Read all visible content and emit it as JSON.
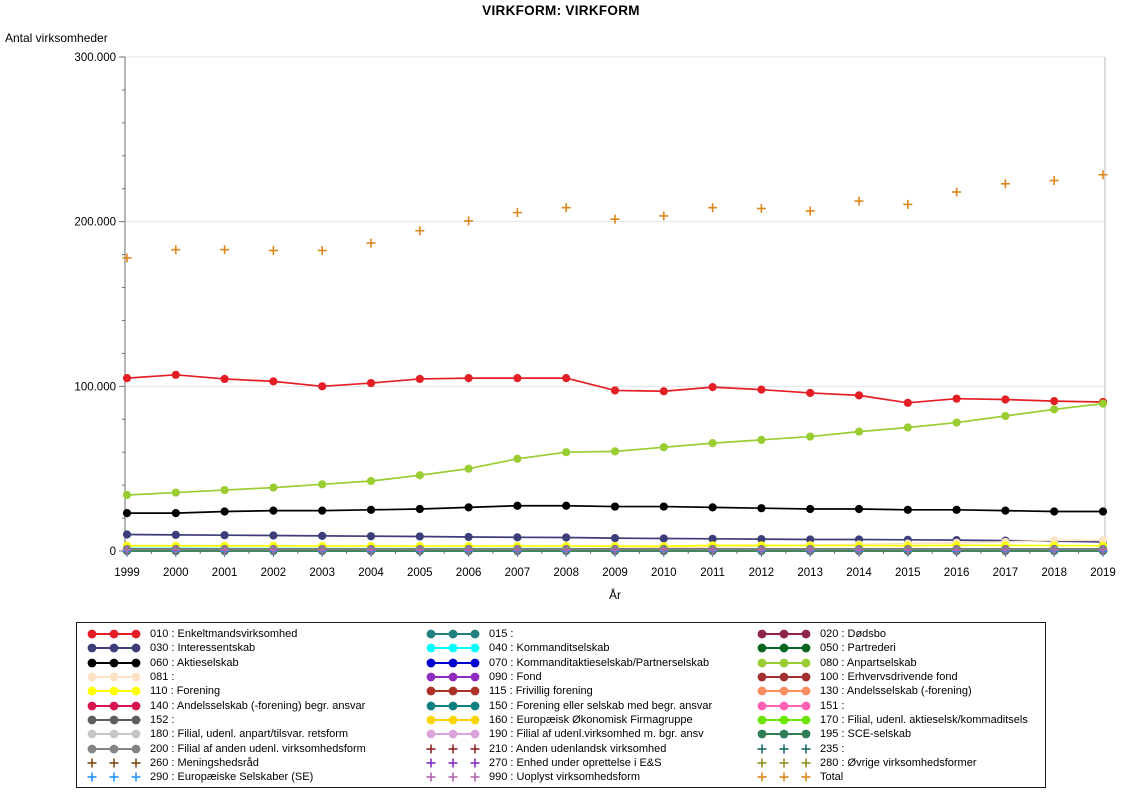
{
  "chart_data": {
    "type": "line",
    "title": "VIRKFORM: VIRKFORM",
    "xlabel": "År",
    "ylabel": "Antal virksomheder",
    "x": [
      1999,
      2000,
      2001,
      2002,
      2003,
      2004,
      2005,
      2006,
      2007,
      2008,
      2009,
      2010,
      2011,
      2012,
      2013,
      2014,
      2015,
      2016,
      2017,
      2018,
      2019
    ],
    "ylim": [
      0,
      300000
    ],
    "yticks": [
      0,
      100000,
      200000,
      300000
    ],
    "ytick_labels": [
      "0",
      "100.000",
      "200.000",
      "300.000"
    ],
    "y_minor_step": 20000,
    "grid": true,
    "legend_position": "bottom",
    "series": [
      {
        "code": "010",
        "legend_label": "010 : Enkeltmandsvirksomhed",
        "color": "#e41e25",
        "marker": "circle",
        "values": [
          105000,
          107000,
          104500,
          103000,
          100000,
          102000,
          104500,
          105000,
          105000,
          105000,
          97500,
          97000,
          99500,
          98000,
          96000,
          94500,
          90000,
          92500,
          92000,
          91000,
          90500
        ]
      },
      {
        "code": "015",
        "legend_label": "015 :",
        "color": "#238080",
        "marker": "circle",
        "values": [
          200,
          200,
          200,
          200,
          200,
          200,
          200,
          200,
          200,
          200,
          200,
          200,
          200,
          200,
          200,
          200,
          200,
          200,
          200,
          200,
          200
        ]
      },
      {
        "code": "020",
        "legend_label": "020 : Dødsbo",
        "color": "#8f2449",
        "marker": "circle",
        "values": [
          500,
          500,
          500,
          500,
          500,
          500,
          500,
          500,
          500,
          500,
          500,
          500,
          500,
          500,
          500,
          500,
          500,
          500,
          500,
          500,
          500
        ]
      },
      {
        "code": "030",
        "legend_label": "030 : Interessentskab",
        "color": "#3d3d7a",
        "marker": "circle",
        "values": [
          10000,
          9800,
          9600,
          9400,
          9200,
          9000,
          8800,
          8500,
          8300,
          8200,
          7800,
          7600,
          7400,
          7200,
          7000,
          7000,
          6800,
          6600,
          6300,
          6000,
          5500
        ]
      },
      {
        "code": "040",
        "legend_label": "040 : Kommanditselskab",
        "color": "#00ffff",
        "marker": "circle",
        "values": [
          1500,
          1500,
          1450,
          1450,
          1400,
          1400,
          1400,
          1350,
          1350,
          1350,
          1300,
          1300,
          1300,
          1300,
          1300,
          1300,
          1300,
          1300,
          1300,
          1300,
          1300
        ]
      },
      {
        "code": "050",
        "legend_label": "050 : Partrederi",
        "color": "#0b6623",
        "marker": "circle",
        "values": [
          300,
          300,
          300,
          300,
          300,
          300,
          300,
          300,
          300,
          300,
          300,
          300,
          300,
          300,
          300,
          300,
          300,
          300,
          300,
          300,
          300
        ]
      },
      {
        "code": "060",
        "legend_label": "060 : Aktieselskab",
        "color": "#000000",
        "marker": "circle",
        "values": [
          23000,
          23000,
          24000,
          24500,
          24500,
          25000,
          25500,
          26500,
          27500,
          27500,
          27000,
          27000,
          26500,
          26000,
          25500,
          25500,
          25000,
          25000,
          24500,
          24000,
          24000
        ]
      },
      {
        "code": "070",
        "legend_label": "070 : Kommanditaktieselskab/Partnerselskab",
        "color": "#0000d0",
        "marker": "circle",
        "values": [
          600,
          600,
          600,
          600,
          600,
          600,
          600,
          600,
          600,
          600,
          600,
          600,
          600,
          600,
          600,
          600,
          600,
          600,
          600,
          600,
          600
        ]
      },
      {
        "code": "080",
        "legend_label": "080 : Anpartselskab",
        "color": "#9acd32",
        "marker": "circle",
        "values": [
          34000,
          35500,
          37000,
          38500,
          40500,
          42500,
          46000,
          50000,
          56000,
          60000,
          60500,
          63000,
          65500,
          67500,
          69500,
          72500,
          75000,
          78000,
          82000,
          86000,
          89500
        ]
      },
      {
        "code": "081",
        "legend_label": "081 :",
        "color": "#fce2c4",
        "marker": "circle",
        "values": [
          300,
          350,
          400,
          450,
          500,
          600,
          700,
          800,
          1000,
          1200,
          1500,
          2000,
          2500,
          3000,
          3500,
          4000,
          4500,
          5000,
          5500,
          6500,
          6500
        ]
      },
      {
        "code": "090",
        "legend_label": "090 : Fond",
        "color": "#8f2bbf",
        "marker": "circle",
        "values": [
          1000,
          1000,
          1000,
          1000,
          1000,
          1000,
          1000,
          1000,
          1000,
          1000,
          1000,
          1000,
          1000,
          1000,
          1000,
          1000,
          1000,
          1000,
          1000,
          1000,
          1000
        ]
      },
      {
        "code": "100",
        "legend_label": "100 : Erhvervsdrivende fond",
        "color": "#a03030",
        "marker": "circle",
        "values": [
          1300,
          1300,
          1300,
          1300,
          1300,
          1300,
          1300,
          1300,
          1300,
          1300,
          1300,
          1300,
          1300,
          1300,
          1300,
          1300,
          1300,
          1300,
          1300,
          1300,
          1300
        ]
      },
      {
        "code": "110",
        "legend_label": "110 : Forening",
        "color": "#ffff00",
        "marker": "circle",
        "values": [
          3200,
          3200,
          3100,
          3100,
          3000,
          3000,
          3000,
          3000,
          3000,
          3000,
          2900,
          2900,
          3400,
          3400,
          3300,
          3300,
          3200,
          3500,
          3400,
          3300,
          3200
        ]
      },
      {
        "code": "115",
        "legend_label": "115 : Frivillig forening",
        "color": "#ae3129",
        "marker": "circle",
        "values": [
          100,
          100,
          100,
          100,
          100,
          100,
          100,
          100,
          100,
          100,
          100,
          100,
          100,
          100,
          100,
          100,
          100,
          100,
          100,
          100,
          100
        ]
      },
      {
        "code": "130",
        "legend_label": "130 : Andelsselskab (-forening)",
        "color": "#fb8e61",
        "marker": "circle",
        "values": [
          500,
          500,
          500,
          500,
          500,
          500,
          500,
          500,
          500,
          500,
          500,
          500,
          500,
          500,
          500,
          500,
          500,
          500,
          500,
          500,
          500
        ]
      },
      {
        "code": "140",
        "legend_label": "140 : Andelsselskab (-forening) begr. ansvar",
        "color": "#d6164e",
        "marker": "circle",
        "values": [
          800,
          800,
          800,
          800,
          800,
          800,
          800,
          800,
          800,
          800,
          800,
          800,
          800,
          800,
          800,
          800,
          800,
          800,
          800,
          800,
          800
        ]
      },
      {
        "code": "150",
        "legend_label": "150 : Forening eller selskab med begr. ansvar",
        "color": "#108080",
        "marker": "circle",
        "values": [
          1200,
          1200,
          1200,
          1200,
          1200,
          1200,
          1200,
          1200,
          1200,
          1200,
          1200,
          1200,
          1200,
          1200,
          1200,
          1200,
          1200,
          1200,
          1200,
          1200,
          1200
        ]
      },
      {
        "code": "151",
        "legend_label": "151 :",
        "color": "#fd61b6",
        "marker": "circle",
        "values": [
          100,
          100,
          100,
          100,
          100,
          100,
          100,
          100,
          100,
          100,
          100,
          100,
          100,
          100,
          100,
          100,
          100,
          100,
          100,
          100,
          100
        ]
      },
      {
        "code": "152",
        "legend_label": "152 :",
        "color": "#5e5e5e",
        "marker": "circle",
        "values": [
          400,
          400,
          400,
          400,
          400,
          400,
          400,
          400,
          400,
          400,
          400,
          400,
          400,
          400,
          400,
          400,
          400,
          400,
          400,
          400,
          400
        ]
      },
      {
        "code": "160",
        "legend_label": "160 : Europæisk Økonomisk Firmagruppe",
        "color": "#fcd305",
        "marker": "circle",
        "values": [
          50,
          50,
          50,
          50,
          50,
          50,
          50,
          50,
          50,
          50,
          50,
          50,
          50,
          50,
          50,
          50,
          50,
          50,
          50,
          50,
          50
        ]
      },
      {
        "code": "170",
        "legend_label": "170 : Filial, udenl. aktieselsk/kommaditsels",
        "color": "#6ce300",
        "marker": "circle",
        "values": [
          700,
          700,
          700,
          700,
          700,
          700,
          700,
          700,
          700,
          700,
          700,
          700,
          700,
          700,
          700,
          700,
          700,
          700,
          700,
          700,
          700
        ]
      },
      {
        "code": "180",
        "legend_label": "180 : Filial, udenl. anpart/tilsvar. retsform",
        "color": "#c6c6c6",
        "marker": "circle",
        "values": [
          900,
          900,
          900,
          900,
          900,
          900,
          900,
          900,
          900,
          900,
          900,
          900,
          900,
          900,
          900,
          900,
          900,
          900,
          900,
          900,
          900
        ]
      },
      {
        "code": "190",
        "legend_label": "190 : Filial af udenl.virksomhed m. bgr. ansv",
        "color": "#daa5da",
        "marker": "circle",
        "values": [
          150,
          150,
          150,
          150,
          150,
          150,
          150,
          150,
          150,
          150,
          150,
          150,
          150,
          150,
          150,
          150,
          150,
          150,
          150,
          150,
          150
        ]
      },
      {
        "code": "195",
        "legend_label": "195 : SCE-selskab",
        "color": "#2e7d55",
        "marker": "circle",
        "values": [
          20,
          20,
          20,
          20,
          20,
          20,
          20,
          20,
          20,
          20,
          20,
          20,
          20,
          20,
          20,
          20,
          20,
          20,
          20,
          20,
          20
        ]
      },
      {
        "code": "200",
        "legend_label": "200 : Filial af anden udenl. virksomhedsform",
        "color": "#848484",
        "marker": "circle",
        "values": [
          1100,
          1100,
          1100,
          1100,
          1100,
          1100,
          1100,
          1100,
          1100,
          1100,
          1100,
          1100,
          1100,
          1100,
          1100,
          1100,
          1100,
          1100,
          1100,
          1100,
          1100
        ]
      },
      {
        "code": "210",
        "legend_label": "210 : Anden udenlandsk virksomhed",
        "color": "#8f2626",
        "marker": "plus",
        "values": [
          250,
          250,
          250,
          250,
          250,
          250,
          250,
          250,
          250,
          250,
          250,
          250,
          250,
          250,
          250,
          250,
          250,
          250,
          250,
          250,
          250
        ]
      },
      {
        "code": "235",
        "legend_label": "235 :",
        "color": "#1d6868",
        "marker": "plus",
        "values": [
          10,
          10,
          10,
          10,
          10,
          10,
          10,
          10,
          10,
          10,
          10,
          10,
          10,
          10,
          10,
          10,
          10,
          10,
          10,
          10,
          10
        ]
      },
      {
        "code": "260",
        "legend_label": "260 : Meningshedsråd",
        "color": "#7d4b17",
        "marker": "plus",
        "values": [
          60,
          60,
          60,
          60,
          60,
          60,
          60,
          60,
          60,
          60,
          60,
          60,
          60,
          60,
          60,
          60,
          60,
          60,
          60,
          60,
          60
        ]
      },
      {
        "code": "270",
        "legend_label": "270 : Enhed under oprettelse i E&S",
        "color": "#8430c0",
        "marker": "plus",
        "values": [
          350,
          350,
          350,
          350,
          350,
          350,
          350,
          350,
          350,
          350,
          350,
          350,
          350,
          350,
          350,
          350,
          350,
          350,
          350,
          350,
          350
        ]
      },
      {
        "code": "280",
        "legend_label": "280 : Øvrige virksomhedsformer",
        "color": "#8f8f22",
        "marker": "plus",
        "values": [
          450,
          450,
          450,
          450,
          450,
          450,
          450,
          450,
          450,
          450,
          450,
          450,
          450,
          450,
          450,
          450,
          450,
          450,
          450,
          450,
          450
        ]
      },
      {
        "code": "290",
        "legend_label": "290 : Europæiske Selskaber (SE)",
        "color": "#2492ff",
        "marker": "plus",
        "values": [
          30,
          30,
          30,
          30,
          30,
          30,
          30,
          30,
          30,
          30,
          30,
          30,
          30,
          30,
          30,
          30,
          30,
          30,
          30,
          30,
          30
        ]
      },
      {
        "code": "990",
        "legend_label": "990 : Uoplyst virksomhedsform",
        "color": "#b465ae",
        "marker": "plus",
        "values": [
          550,
          550,
          550,
          550,
          550,
          550,
          550,
          550,
          550,
          550,
          550,
          550,
          550,
          550,
          550,
          550,
          550,
          550,
          550,
          550,
          550
        ]
      },
      {
        "code": "Total",
        "legend_label": "Total",
        "color": "#dd871b",
        "marker": "plus",
        "values": [
          178000,
          183000,
          183000,
          182500,
          182500,
          187000,
          194500,
          200500,
          205500,
          208500,
          201500,
          203500,
          208500,
          208000,
          206500,
          212500,
          210500,
          218000,
          223000,
          225000,
          228500
        ]
      }
    ]
  },
  "colors": {
    "background": "#ffffff",
    "grid": "#e4e4e4",
    "axis": "#6e6e6e",
    "frame_light": "#bdbdbd",
    "text": "#000000"
  }
}
